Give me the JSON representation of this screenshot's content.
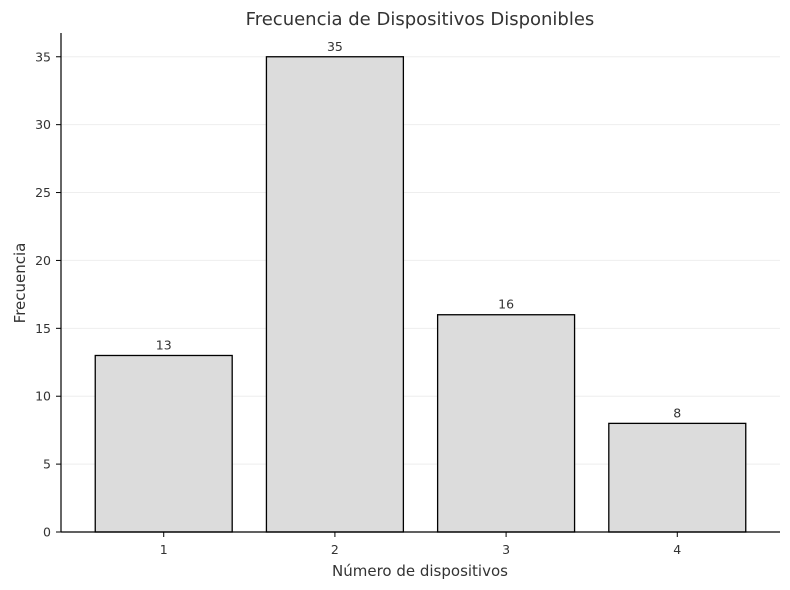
{
  "chart_data": {
    "type": "bar",
    "title": "Frecuencia de Dispositivos Disponibles",
    "xlabel": "Número de dispositivos",
    "ylabel": "Frecuencia",
    "categories": [
      "1",
      "2",
      "3",
      "4"
    ],
    "values": [
      13,
      35,
      16,
      8
    ],
    "data_labels": [
      "13",
      "35",
      "16",
      "8"
    ],
    "yticks": [
      0,
      5,
      10,
      15,
      20,
      25,
      30,
      35
    ],
    "ylim": [
      0,
      36.75
    ],
    "grid": "horizontal",
    "bar_color": "#dcdcdc",
    "bar_edge_color": "#000000",
    "grid_color": "#eeeeee"
  }
}
